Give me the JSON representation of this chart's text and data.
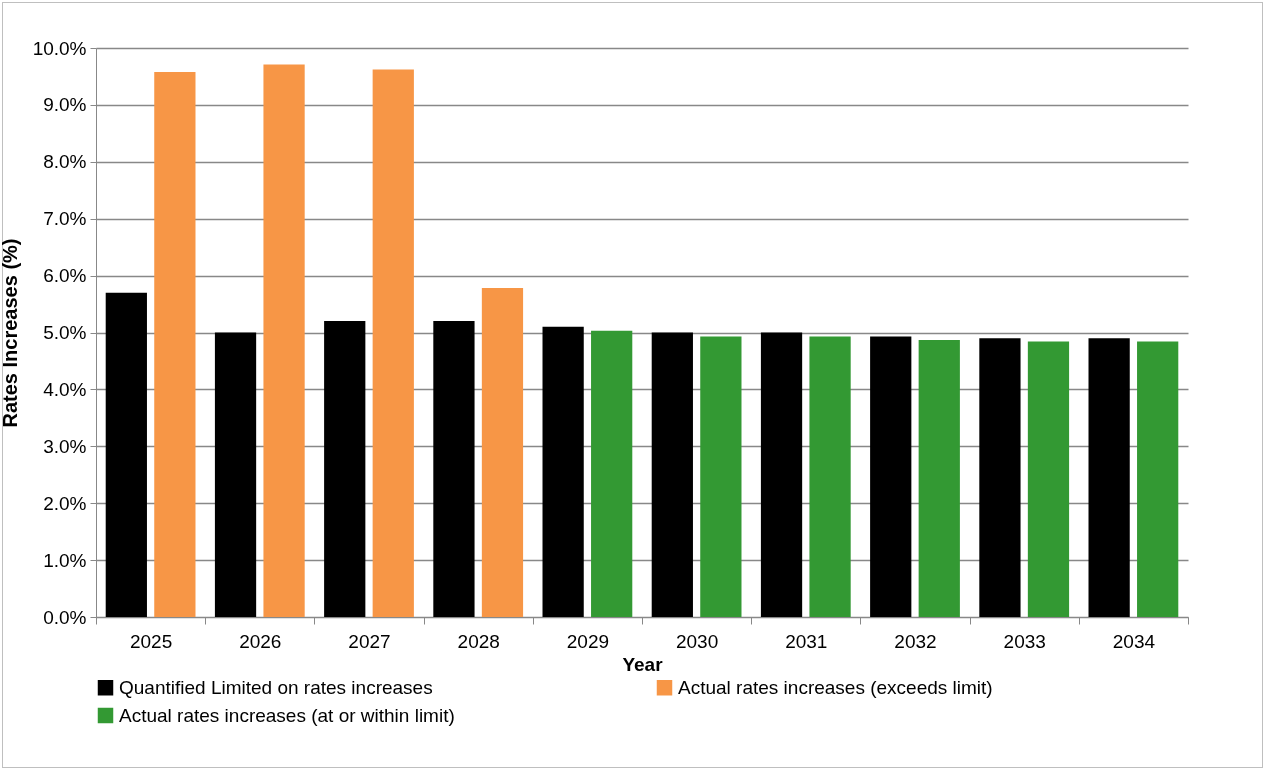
{
  "chart_data": {
    "type": "bar",
    "xlabel": "Year",
    "ylabel": "Rates Increases (%)",
    "categories": [
      "2025",
      "2026",
      "2027",
      "2028",
      "2029",
      "2030",
      "2031",
      "2032",
      "2033",
      "2034"
    ],
    "series": [
      {
        "name": "Quantified Limited on rates increases",
        "color": "#000000",
        "values": [
          5.7,
          5.0,
          5.2,
          5.2,
          5.1,
          5.0,
          5.0,
          4.93,
          4.9,
          4.9
        ]
      },
      {
        "name": "Actual rates increases (exceeds limit)",
        "color": "#f79646",
        "values": [
          9.58,
          9.71,
          9.62,
          5.78,
          null,
          null,
          null,
          null,
          null,
          null
        ]
      },
      {
        "name": "Actual rates increases (at or within limit)",
        "color": "#339933",
        "values": [
          null,
          null,
          null,
          null,
          5.03,
          4.93,
          4.93,
          4.87,
          4.84,
          4.84
        ]
      }
    ],
    "ylim": [
      0,
      10
    ],
    "yticks": [
      {
        "value": 0,
        "label": "0.0%"
      },
      {
        "value": 1,
        "label": "1.0%"
      },
      {
        "value": 2,
        "label": "2.0%"
      },
      {
        "value": 3,
        "label": "3.0%"
      },
      {
        "value": 4,
        "label": "4.0%"
      },
      {
        "value": 5,
        "label": "5.0%"
      },
      {
        "value": 6,
        "label": "6.0%"
      },
      {
        "value": 7,
        "label": "7.0%"
      },
      {
        "value": 8,
        "label": "8.0%"
      },
      {
        "value": 9,
        "label": "9.0%"
      },
      {
        "value": 10,
        "label": "10.0%"
      }
    ],
    "grid": "y",
    "legend": "bottom"
  }
}
